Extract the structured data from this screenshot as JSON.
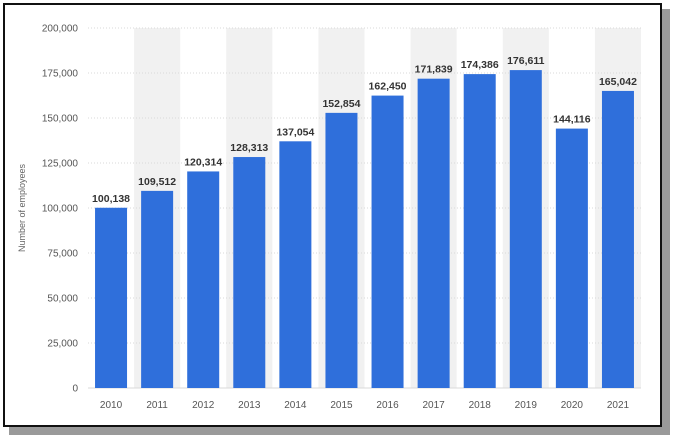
{
  "chart_data": {
    "type": "bar",
    "categories": [
      "2010",
      "2011",
      "2012",
      "2013",
      "2014",
      "2015",
      "2016",
      "2017",
      "2018",
      "2019",
      "2020",
      "2021"
    ],
    "values": [
      100138,
      109512,
      120314,
      128313,
      137054,
      152854,
      162450,
      171839,
      174386,
      176611,
      144116,
      165042
    ],
    "data_labels": [
      "100,138",
      "109,512",
      "120,314",
      "128,313",
      "137,054",
      "152,854",
      "162,450",
      "171,839",
      "174,386",
      "176,611",
      "144,116",
      "165,042"
    ],
    "ylabel": "Number of employees",
    "ylim": [
      0,
      200000
    ],
    "yticks": [
      0,
      25000,
      50000,
      75000,
      100000,
      125000,
      150000,
      175000,
      200000
    ],
    "ytick_labels": [
      "0",
      "25,000",
      "50,000",
      "75,000",
      "100,000",
      "125,000",
      "150,000",
      "175,000",
      "200,000"
    ],
    "grid": true,
    "colors": {
      "bar": "#2f6fdb",
      "grid": "#d9d9d9",
      "band": "#f1f1f1"
    }
  }
}
